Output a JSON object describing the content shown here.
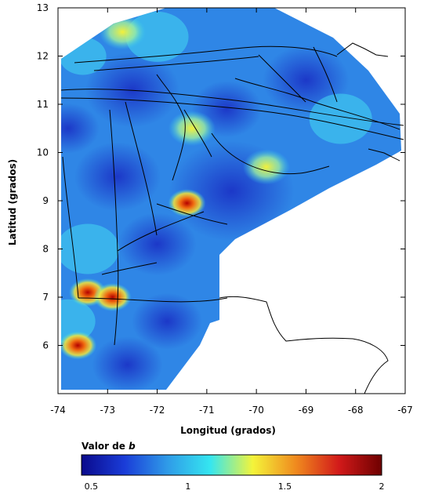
{
  "map": {
    "xlabel": "Longitud (grados)",
    "ylabel": "Latitud (grados)",
    "lon_range": [
      -74,
      -67
    ],
    "lat_range": [
      5,
      13
    ],
    "lon_ticks": [
      "-74",
      "-73",
      "-72",
      "-71",
      "-70",
      "-69",
      "-68",
      "-67"
    ],
    "lat_ticks": [
      "6",
      "7",
      "8",
      "9",
      "10",
      "11",
      "12",
      "13"
    ]
  },
  "colorbar": {
    "title_prefix": "Valor de",
    "title_var": "b",
    "range": [
      0.45,
      2.0
    ],
    "ticks": [
      "0.5",
      "1",
      "1.5",
      "2"
    ],
    "tick_values": [
      0.5,
      1.0,
      1.5,
      2.0
    ],
    "colors": [
      "#0a0a8c",
      "#1a3cd8",
      "#2f9be8",
      "#35e6f0",
      "#f4f43a",
      "#f08a1e",
      "#d21a1a",
      "#6e0000"
    ]
  },
  "hotspots": [
    {
      "lon": -73.4,
      "lat": 7.1,
      "b": 1.9
    },
    {
      "lon": -73.6,
      "lat": 6.0,
      "b": 1.95
    },
    {
      "lon": -72.9,
      "lat": 7.0,
      "b": 1.8
    },
    {
      "lon": -71.4,
      "lat": 8.95,
      "b": 1.85
    },
    {
      "lon": -71.3,
      "lat": 10.5,
      "b": 1.4
    },
    {
      "lon": -69.8,
      "lat": 9.7,
      "b": 1.55
    },
    {
      "lon": -72.7,
      "lat": 12.5,
      "b": 1.4
    }
  ]
}
